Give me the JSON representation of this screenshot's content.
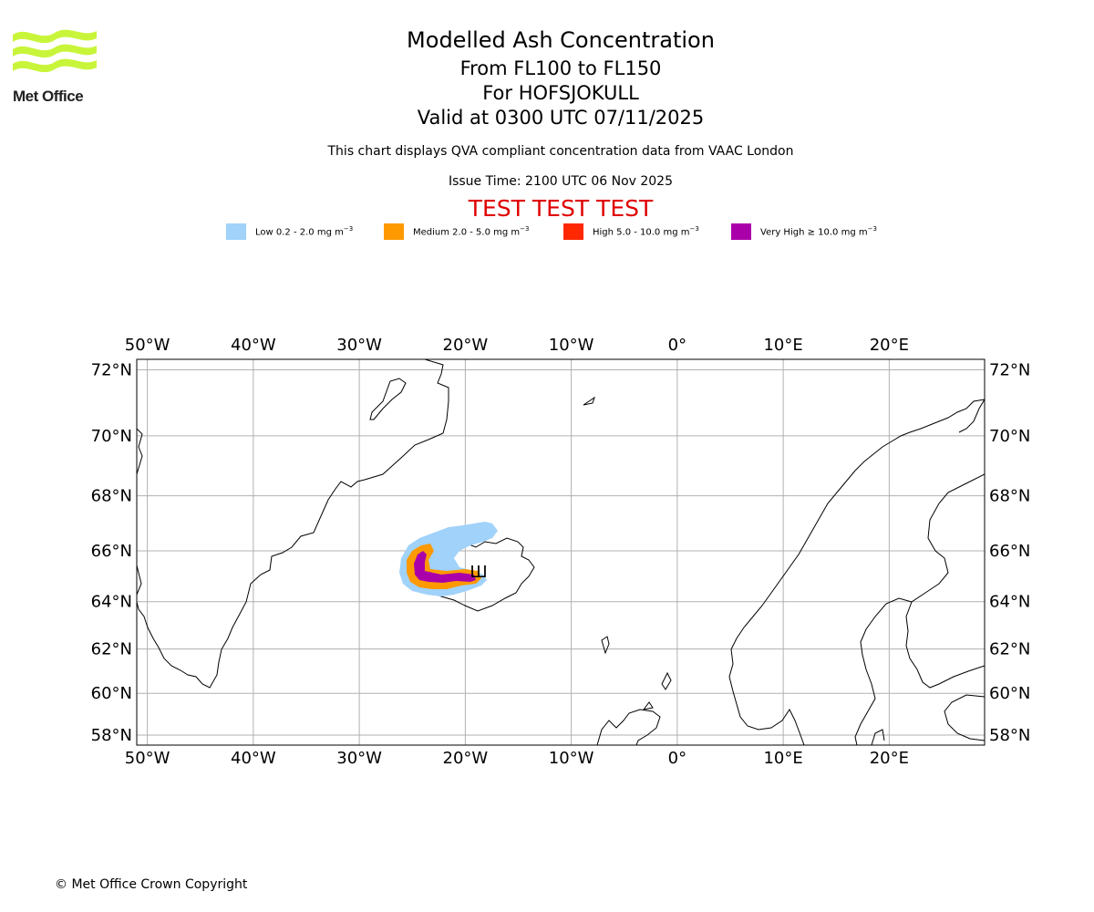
{
  "logo": {
    "text": "Met Office",
    "color": "#c8f53a"
  },
  "header": {
    "title": "Modelled Ash Concentration",
    "line1": "From FL100 to FL150",
    "line2": "For HOFSJOKULL",
    "line3": "Valid at 0300 UTC 07/11/2025",
    "note": "This chart displays QVA compliant concentration data from VAAC London",
    "issue_time": "Issue Time: 2100 UTC 06 Nov 2025",
    "test_banner": "TEST TEST TEST"
  },
  "legend": [
    {
      "label": "Low 0.2 - 2.0 mg m",
      "color": "#a0d2fa"
    },
    {
      "label": "Medium 2.0 - 5.0 mg m",
      "color": "#ff9900"
    },
    {
      "label": "High 5.0 - 10.0 mg m",
      "color": "#ff2800"
    },
    {
      "label": "Very High ≥ 10.0 mg m",
      "color": "#aa00aa"
    }
  ],
  "legend_unit_exp": "−3",
  "map": {
    "lon_range": [
      -51,
      29
    ],
    "lat_range": [
      57.5,
      72.3
    ],
    "lon_ticks": [
      "50°W",
      "40°W",
      "30°W",
      "20°W",
      "10°W",
      "0°",
      "10°E",
      "20°E"
    ],
    "lat_ticks": [
      "72°N",
      "70°N",
      "68°N",
      "66°N",
      "64°N",
      "62°N",
      "60°N",
      "58°N"
    ],
    "volcano_marker": "Ш"
  },
  "footer": {
    "copyright": "© Met Office Crown Copyright"
  }
}
